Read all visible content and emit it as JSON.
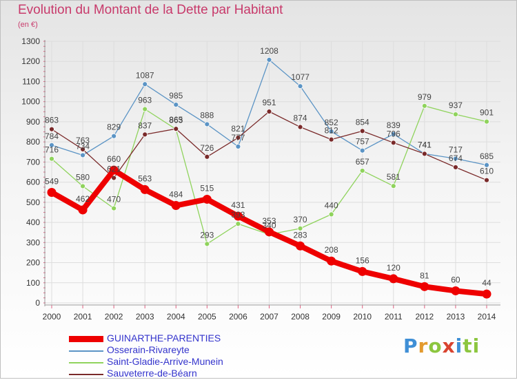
{
  "title": "Evolution du Montant de la Dette par Habitant",
  "subtitle": "(en €)",
  "logo": [
    "P",
    "r",
    "o",
    "x",
    "i",
    "ti"
  ],
  "chart_data": {
    "type": "line",
    "x": [
      2000,
      2001,
      2002,
      2003,
      2004,
      2005,
      2006,
      2007,
      2008,
      2009,
      2010,
      2011,
      2012,
      2013,
      2014
    ],
    "ylim": [
      0,
      1300
    ],
    "yticks": [
      0,
      100,
      200,
      300,
      400,
      500,
      600,
      700,
      800,
      900,
      1000,
      1100,
      1200,
      1300
    ],
    "grid": true,
    "legend_position": "bottom-left",
    "series": [
      {
        "name": "GUINARTHE-PARENTIES",
        "color": "#ee0000",
        "thick": true,
        "values": [
          549,
          462,
          660,
          563,
          484,
          515,
          431,
          353,
          283,
          208,
          156,
          120,
          81,
          60,
          44
        ]
      },
      {
        "name": "Osserain-Rivareyte",
        "color": "#5b94c5",
        "thick": false,
        "values": [
          784,
          734,
          829,
          1087,
          985,
          888,
          777,
          1208,
          1077,
          852,
          757,
          839,
          741,
          717,
          685
        ]
      },
      {
        "name": "Saint-Gladie-Arrive-Munein",
        "color": "#8fd35c",
        "thick": false,
        "values": [
          716,
          580,
          470,
          963,
          863,
          293,
          393,
          340,
          370,
          440,
          657,
          581,
          979,
          937,
          901
        ]
      },
      {
        "name": "Sauveterre-de-Béarn",
        "color": "#7a2a2a",
        "thick": false,
        "values": [
          863,
          763,
          621,
          837,
          865,
          726,
          821,
          951,
          874,
          812,
          854,
          796,
          741,
          674,
          610
        ]
      }
    ]
  }
}
